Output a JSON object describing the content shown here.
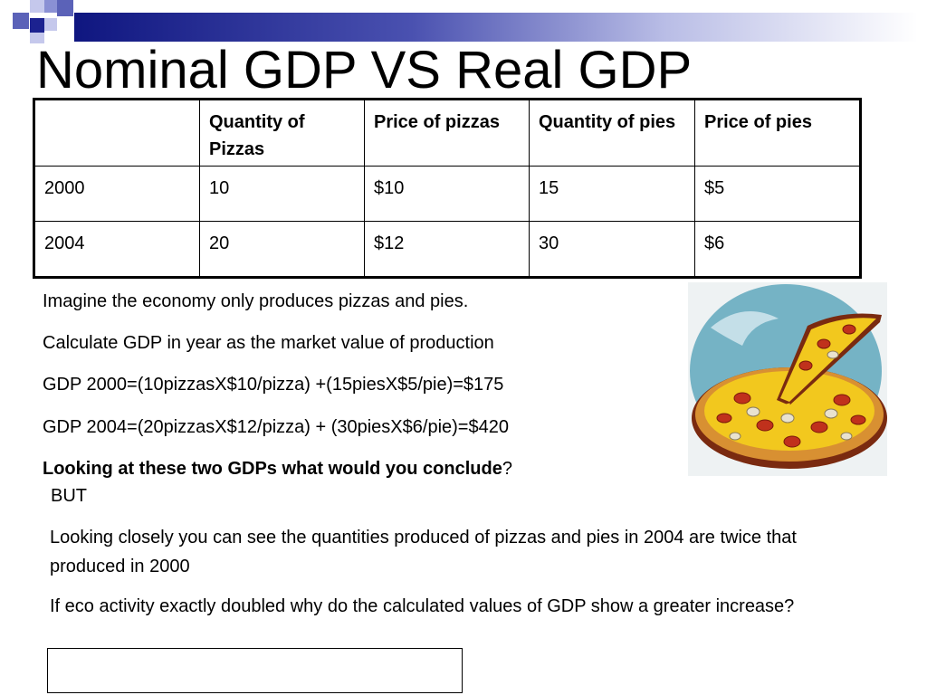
{
  "slide": {
    "title": "Nominal GDP VS Real GDP"
  },
  "table": {
    "headers": [
      "",
      "Quantity of Pizzas",
      "Price of pizzas",
      "Quantity of pies",
      "Price of pies"
    ],
    "rows": [
      [
        "2000",
        "10",
        "$10",
        "15",
        "$5"
      ],
      [
        "2004",
        "20",
        "$12",
        "30",
        "$6"
      ]
    ]
  },
  "body": {
    "p1": "Imagine the economy only produces pizzas and pies.",
    "p2": "Calculate GDP in year as the market value of production",
    "p3": "GDP 2000=(10pizzasX$10/pizza) +(15piesX$5/pie)=$175",
    "p4": "GDP 2004=(20pizzasX$12/pizza) + (30piesX$6/pie)=$420",
    "p5_bold": "Looking at these two GDPs what would you conclude",
    "p5_end": "?",
    "p6": "BUT",
    "p7": "Looking closely you can see the quantities produced of pizzas and pies in 2004 are twice that produced in 2000",
    "p8": "If eco activity exactly doubled why do the calculated values of GDP show a greater increase?"
  },
  "colors": {
    "accent_dark": "#0f1680",
    "accent_light": "#c5c8ec"
  },
  "images": {
    "pizza": "pizza-clipart"
  }
}
